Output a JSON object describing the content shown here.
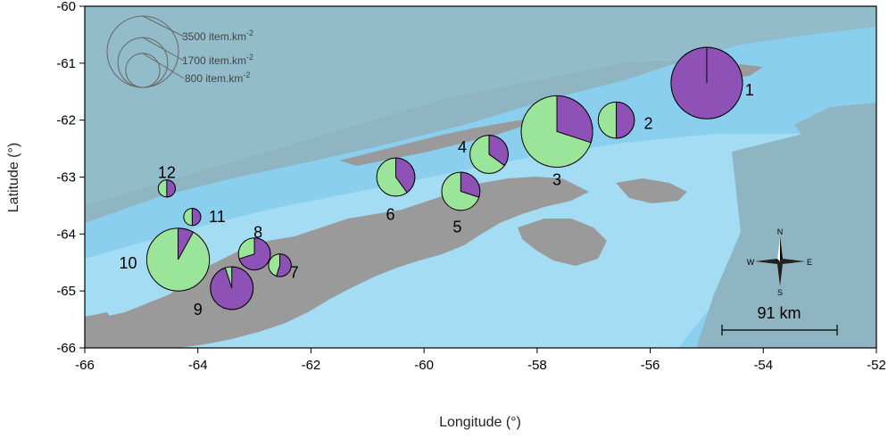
{
  "chart_data": {
    "type": "map-pie",
    "xlabel": "Longitude (°)",
    "ylabel": "Latitude (°)",
    "xlim": [
      -66,
      -52
    ],
    "ylim": [
      -66,
      -60
    ],
    "xticks": [
      -66,
      -64,
      -62,
      -60,
      -58,
      -56,
      -54,
      -52
    ],
    "yticks": [
      -66,
      -65,
      -64,
      -63,
      -62,
      -61,
      -60
    ],
    "colors": {
      "green": "#9be59b",
      "purple": "#8e52b6",
      "land": "#9b9b9b",
      "deep": "#8fb6c3",
      "shelf": "#8ed4f0"
    },
    "sites": [
      {
        "id": "1",
        "lon": -55.0,
        "lat": -61.35,
        "density": 3500,
        "fraction_purple": 1.0
      },
      {
        "id": "2",
        "lon": -56.6,
        "lat": -62.0,
        "density": 900,
        "fraction_purple": 0.5
      },
      {
        "id": "3",
        "lon": -57.65,
        "lat": -62.2,
        "density": 3500,
        "fraction_purple": 0.3
      },
      {
        "id": "4",
        "lon": -58.85,
        "lat": -62.6,
        "density": 1000,
        "fraction_purple": 0.35
      },
      {
        "id": "5",
        "lon": -59.35,
        "lat": -63.25,
        "density": 1000,
        "fraction_purple": 0.3
      },
      {
        "id": "6",
        "lon": -60.5,
        "lat": -63.0,
        "density": 1000,
        "fraction_purple": 0.4
      },
      {
        "id": "7",
        "lon": -62.55,
        "lat": -64.55,
        "density": 350,
        "fraction_purple": 0.55
      },
      {
        "id": "8",
        "lon": -63.0,
        "lat": -64.35,
        "density": 700,
        "fraction_purple": 0.7
      },
      {
        "id": "9",
        "lon": -63.4,
        "lat": -64.95,
        "density": 1250,
        "fraction_purple": 0.95
      },
      {
        "id": "10",
        "lon": -64.35,
        "lat": -64.45,
        "density": 2700,
        "fraction_purple": 0.08
      },
      {
        "id": "11",
        "lon": -64.1,
        "lat": -63.7,
        "density": 200,
        "fraction_purple": 0.5
      },
      {
        "id": "12",
        "lon": -64.55,
        "lat": -63.2,
        "density": 200,
        "fraction_purple": 0.5
      }
    ],
    "size_legend": [
      {
        "value": 3500,
        "label": "3500 item.km",
        "sup": "-2"
      },
      {
        "value": 1700,
        "label": "1700 item.km",
        "sup": "-2"
      },
      {
        "value": 800,
        "label": "800 item.km",
        "sup": "-2"
      }
    ],
    "scale_bar": {
      "label": "91 km"
    },
    "compass": {
      "n": "N",
      "s": "S",
      "e": "E",
      "w": "W"
    }
  }
}
